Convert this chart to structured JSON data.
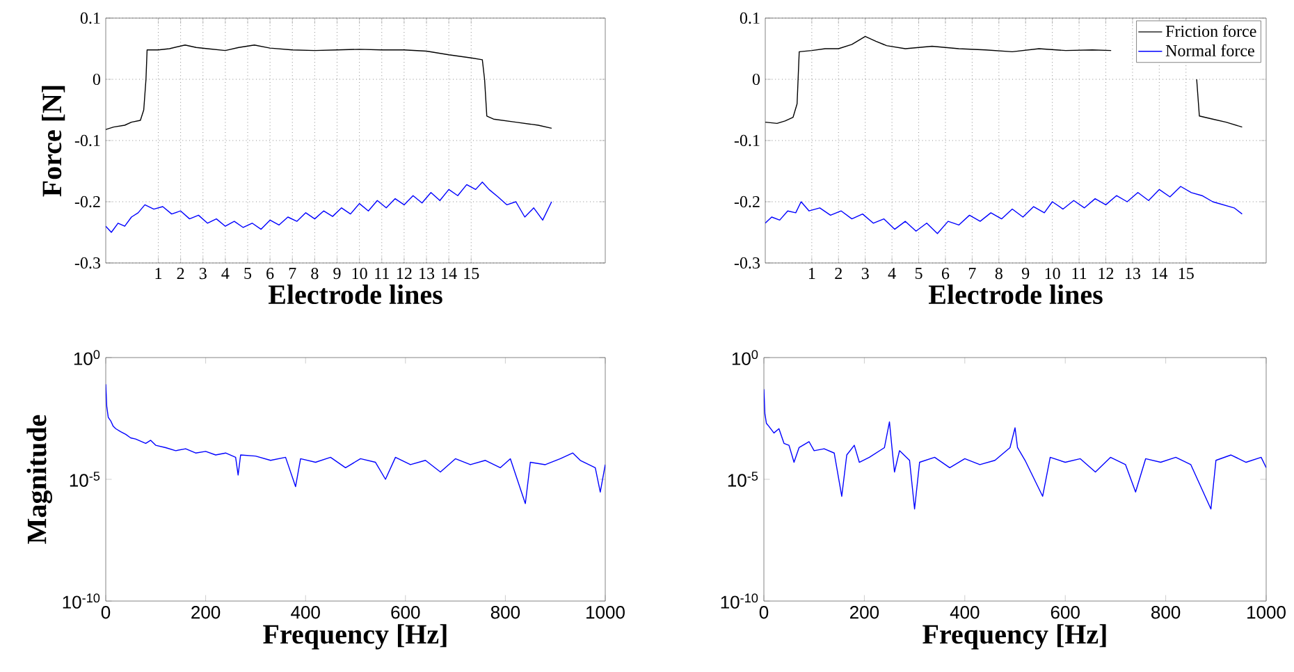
{
  "chart_data": [
    {
      "type": "line",
      "xlabel": "Electrode lines",
      "ylabel": "Force [N]",
      "xlim": [
        -1.35,
        21
      ],
      "xticks": [
        1,
        2,
        3,
        4,
        5,
        6,
        7,
        8,
        9,
        10,
        11,
        12,
        13,
        14,
        15
      ],
      "ylim": [
        -0.3,
        0.1
      ],
      "yticks": [
        -0.3,
        -0.2,
        -0.1,
        0,
        0.1
      ],
      "grid": true,
      "series": [
        {
          "color": "#000000",
          "x": [
            -1.35,
            -1.0,
            -0.5,
            -0.2,
            0.2,
            0.35,
            0.45,
            0.5,
            1.0,
            1.5,
            2.2,
            2.7,
            3.2,
            4.0,
            4.6,
            5.3,
            6.0,
            7.0,
            8.0,
            9.0,
            10.0,
            11.0,
            12.0,
            13.0,
            14.0,
            15.0,
            15.5,
            15.6,
            15.7,
            16.0,
            17.0,
            18.0,
            18.6
          ],
          "values": [
            -0.082,
            -0.078,
            -0.075,
            -0.07,
            -0.067,
            -0.05,
            0.0,
            0.048,
            0.048,
            0.05,
            0.056,
            0.052,
            0.05,
            0.047,
            0.052,
            0.056,
            0.051,
            0.048,
            0.047,
            0.048,
            0.049,
            0.048,
            0.048,
            0.046,
            0.04,
            0.035,
            0.032,
            0.0,
            -0.06,
            -0.065,
            -0.07,
            -0.075,
            -0.08
          ]
        },
        {
          "color": "#0000ff",
          "x": [
            -1.35,
            -1.1,
            -0.8,
            -0.5,
            -0.2,
            0.1,
            0.4,
            0.8,
            1.2,
            1.6,
            2.0,
            2.4,
            2.8,
            3.2,
            3.6,
            4.0,
            4.4,
            4.8,
            5.2,
            5.6,
            6.0,
            6.4,
            6.8,
            7.2,
            7.6,
            8.0,
            8.4,
            8.8,
            9.2,
            9.6,
            10.0,
            10.4,
            10.8,
            11.2,
            11.6,
            12.0,
            12.4,
            12.8,
            13.2,
            13.6,
            14.0,
            14.4,
            14.8,
            15.2,
            15.5,
            15.8,
            16.2,
            16.6,
            17.0,
            17.4,
            17.8,
            18.2,
            18.6
          ],
          "values": [
            -0.24,
            -0.25,
            -0.235,
            -0.24,
            -0.225,
            -0.218,
            -0.205,
            -0.212,
            -0.208,
            -0.22,
            -0.215,
            -0.228,
            -0.222,
            -0.235,
            -0.228,
            -0.24,
            -0.232,
            -0.242,
            -0.235,
            -0.245,
            -0.23,
            -0.238,
            -0.225,
            -0.232,
            -0.218,
            -0.228,
            -0.215,
            -0.224,
            -0.21,
            -0.22,
            -0.203,
            -0.215,
            -0.198,
            -0.21,
            -0.195,
            -0.205,
            -0.19,
            -0.202,
            -0.185,
            -0.198,
            -0.18,
            -0.19,
            -0.172,
            -0.18,
            -0.168,
            -0.18,
            -0.192,
            -0.205,
            -0.2,
            -0.225,
            -0.21,
            -0.23,
            -0.2
          ]
        }
      ]
    },
    {
      "type": "line",
      "xlabel": "Electrode lines",
      "xlim": [
        -0.74,
        18
      ],
      "xticks": [
        1,
        2,
        3,
        4,
        5,
        6,
        7,
        8,
        9,
        10,
        11,
        12,
        13,
        14,
        15
      ],
      "ylim": [
        -0.3,
        0.1
      ],
      "yticks": [
        -0.3,
        -0.2,
        -0.1,
        0,
        0.1
      ],
      "grid": true,
      "legend": "top right",
      "series": [
        {
          "name": "Friction force",
          "color": "#000000",
          "x": [
            -0.74,
            -0.3,
            0,
            0.3,
            0.45,
            0.53,
            1.0,
            1.5,
            2.0,
            2.5,
            3.0,
            3.4,
            3.8,
            4.5,
            5.5,
            6.5,
            7.5,
            8.5,
            9.5,
            10.5,
            11.5,
            12.2,
            12.5,
            15.3,
            15.4,
            15.5,
            16.0,
            16.5,
            17.1
          ],
          "values": [
            -0.07,
            -0.072,
            -0.068,
            -0.062,
            -0.04,
            0.045,
            0.047,
            0.05,
            0.05,
            0.057,
            0.07,
            0.062,
            0.055,
            0.05,
            0.054,
            0.05,
            0.048,
            0.045,
            0.05,
            0.047,
            0.048,
            0.047,
            null,
            null,
            0.0,
            -0.06,
            -0.065,
            -0.07,
            -0.078
          ]
        },
        {
          "name": "Normal force",
          "color": "#0000ff",
          "x": [
            -0.74,
            -0.5,
            -0.2,
            0.1,
            0.4,
            0.6,
            0.9,
            1.3,
            1.7,
            2.1,
            2.5,
            2.9,
            3.3,
            3.7,
            4.1,
            4.5,
            4.9,
            5.3,
            5.7,
            6.1,
            6.5,
            6.9,
            7.3,
            7.7,
            8.1,
            8.5,
            8.9,
            9.3,
            9.7,
            10.0,
            10.4,
            10.8,
            11.2,
            11.6,
            12.0,
            12.4,
            12.8,
            13.2,
            13.6,
            14.0,
            14.4,
            14.8,
            15.2,
            15.6,
            16.0,
            16.4,
            16.8,
            17.1
          ],
          "values": [
            -0.235,
            -0.225,
            -0.23,
            -0.215,
            -0.218,
            -0.2,
            -0.215,
            -0.21,
            -0.222,
            -0.215,
            -0.228,
            -0.22,
            -0.235,
            -0.228,
            -0.245,
            -0.232,
            -0.248,
            -0.235,
            -0.252,
            -0.232,
            -0.238,
            -0.222,
            -0.232,
            -0.218,
            -0.228,
            -0.212,
            -0.225,
            -0.208,
            -0.218,
            -0.2,
            -0.212,
            -0.198,
            -0.21,
            -0.195,
            -0.205,
            -0.19,
            -0.2,
            -0.185,
            -0.198,
            -0.18,
            -0.192,
            -0.175,
            -0.185,
            -0.19,
            -0.2,
            -0.205,
            -0.21,
            -0.22
          ]
        }
      ]
    },
    {
      "type": "line",
      "xlabel": "Frequency [Hz]",
      "ylabel": "Magnitude",
      "log": "y",
      "xlim": [
        0,
        1000
      ],
      "xticks": [
        0,
        200,
        400,
        600,
        800,
        1000
      ],
      "ylim": [
        1e-10,
        1
      ],
      "yticks": [
        {
          "value": 1,
          "label": "10$^{0}$"
        },
        {
          "value": 1e-05,
          "label": "10$^{-5}$"
        },
        {
          "value": 1e-10,
          "label": "10$^{-10}$"
        }
      ],
      "series": [
        {
          "color": "#0000ff",
          "x": [
            0,
            2,
            5,
            10,
            15,
            20,
            30,
            40,
            50,
            60,
            80,
            90,
            100,
            120,
            140,
            160,
            180,
            200,
            220,
            240,
            260,
            265,
            270,
            300,
            330,
            360,
            380,
            390,
            420,
            450,
            480,
            510,
            540,
            560,
            580,
            610,
            640,
            670,
            700,
            730,
            760,
            790,
            810,
            840,
            850,
            880,
            910,
            935,
            950,
            980,
            990,
            1000
          ],
          "values": [
            0.08,
            0.01,
            0.0035,
            0.0025,
            0.0015,
            0.0012,
            0.0009,
            0.0007,
            0.0005,
            0.00045,
            0.0003,
            0.0004,
            0.00025,
            0.0002,
            0.00015,
            0.00018,
            0.00012,
            0.00014,
            0.0001,
            0.00012,
            8e-05,
            1.5e-05,
            0.0001,
            9e-05,
            6e-05,
            8e-05,
            5e-06,
            7e-05,
            5e-05,
            8e-05,
            3e-05,
            7e-05,
            5e-05,
            1e-05,
            8e-05,
            4e-05,
            6e-05,
            2e-05,
            7e-05,
            4e-05,
            6e-05,
            3e-05,
            7e-05,
            1e-06,
            5e-05,
            4e-05,
            7e-05,
            0.00012,
            6e-05,
            3e-05,
            3e-06,
            4e-05
          ]
        }
      ]
    },
    {
      "type": "line",
      "xlabel": "Frequency [Hz]",
      "log": "y",
      "xlim": [
        0,
        1000
      ],
      "xticks": [
        0,
        200,
        400,
        600,
        800,
        1000
      ],
      "ylim": [
        1e-10,
        1
      ],
      "yticks": [
        {
          "value": 1,
          "label": "10$^{0}$"
        },
        {
          "value": 1e-05,
          "label": "10$^{-5}$"
        },
        {
          "value": 1e-10,
          "label": "10$^{-10}$"
        }
      ],
      "series": [
        {
          "color": "#0000ff",
          "x": [
            0,
            2,
            5,
            10,
            20,
            30,
            40,
            50,
            60,
            70,
            90,
            100,
            120,
            140,
            155,
            165,
            180,
            190,
            210,
            240,
            250,
            255,
            260,
            270,
            290,
            300,
            310,
            340,
            370,
            400,
            430,
            460,
            490,
            500,
            505,
            520,
            555,
            570,
            600,
            630,
            660,
            690,
            720,
            740,
            760,
            790,
            820,
            850,
            890,
            900,
            930,
            960,
            990,
            1000
          ],
          "values": [
            0.05,
            0.005,
            0.002,
            0.0015,
            0.0008,
            0.0012,
            0.0003,
            0.00025,
            5e-05,
            0.0002,
            0.00035,
            0.00015,
            0.00018,
            0.00012,
            2e-06,
            0.0001,
            0.00025,
            5e-05,
            8e-05,
            0.0002,
            0.0023,
            0.0002,
            2e-05,
            0.00015,
            6e-05,
            6e-07,
            5e-05,
            8e-05,
            3e-05,
            7e-05,
            4e-05,
            6e-05,
            0.0002,
            0.0013,
            0.0002,
            6e-05,
            2e-06,
            8e-05,
            5e-05,
            7e-05,
            2e-05,
            8e-05,
            4e-05,
            3e-06,
            7e-05,
            5e-05,
            8e-05,
            4e-05,
            6e-07,
            6e-05,
            0.0001,
            5e-05,
            8e-05,
            3e-05
          ]
        }
      ]
    }
  ]
}
